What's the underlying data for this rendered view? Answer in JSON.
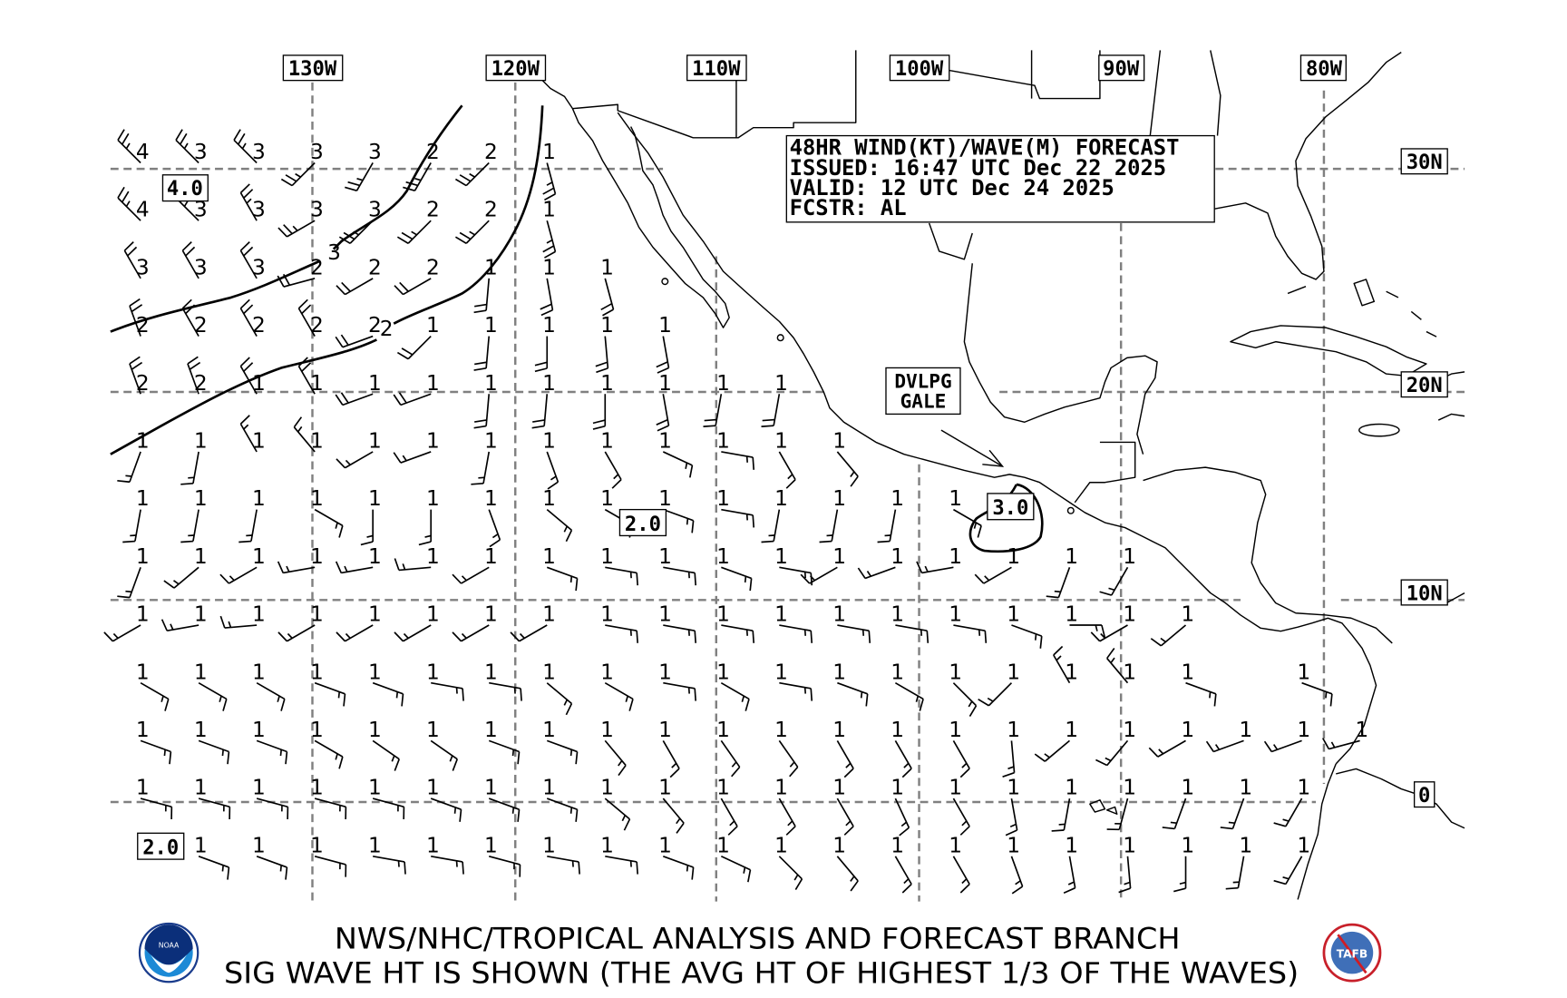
{
  "header": {
    "line1": "48HR WIND(KT)/WAVE(M) FORECAST",
    "line2": "ISSUED: 16:47 UTC Dec 22 2025",
    "line3": "VALID: 12 UTC Dec 24 2025",
    "line4": "FCSTR: AL"
  },
  "longitudes": [
    "130W",
    "120W",
    "110W",
    "100W",
    "90W",
    "80W"
  ],
  "latitudes": [
    "30N",
    "20N",
    "10N",
    "0"
  ],
  "contour_labels": {
    "box_4": "4.0",
    "box_2a": "2.0",
    "box_2b": "2.0",
    "box_3": "3.0",
    "line_3": "3",
    "line_2": "2"
  },
  "warning": {
    "line1": "DVLPG",
    "line2": "GALE"
  },
  "footer": {
    "line1": "NWS/NHC/TROPICAL ANALYSIS AND FORECAST BRANCH",
    "line2": "SIG WAVE HT IS SHOWN (THE AVG HT OF HIGHEST 1/3 OF THE WAVES)",
    "logo_left": "NOAA",
    "logo_right": "TAFB"
  },
  "wave_heights_m": [
    [
      4,
      3,
      3,
      3,
      3,
      2,
      2,
      1
    ],
    [
      4,
      3,
      3,
      3,
      3,
      2,
      2,
      1
    ],
    [
      3,
      3,
      3,
      2,
      2,
      2,
      1,
      1,
      1
    ],
    [
      2,
      2,
      2,
      2,
      2,
      1,
      1,
      1,
      1,
      1
    ],
    [
      2,
      2,
      1,
      1,
      1,
      1,
      1,
      1,
      1,
      1,
      1,
      1
    ],
    [
      1,
      1,
      1,
      1,
      1,
      1,
      1,
      1,
      1,
      1,
      1,
      1,
      1
    ],
    [
      1,
      1,
      1,
      1,
      1,
      1,
      1,
      1,
      1,
      1,
      1,
      1,
      1,
      1,
      1
    ],
    [
      1,
      1,
      1,
      1,
      1,
      1,
      1,
      1,
      1,
      1,
      1,
      1,
      1,
      1,
      1,
      1,
      1,
      1
    ],
    [
      1,
      1,
      1,
      1,
      1,
      1,
      1,
      1,
      1,
      1,
      1,
      1,
      1,
      1,
      1,
      1,
      1,
      1,
      1
    ],
    [
      1,
      1,
      1,
      1,
      1,
      1,
      1,
      1,
      1,
      1,
      1,
      1,
      1,
      1,
      1,
      1,
      1,
      1,
      1,
      null,
      1
    ],
    [
      1,
      1,
      1,
      1,
      1,
      1,
      1,
      1,
      1,
      1,
      1,
      1,
      1,
      1,
      1,
      1,
      1,
      1,
      1,
      1,
      1,
      1
    ],
    [
      1,
      1,
      1,
      1,
      1,
      1,
      1,
      1,
      1,
      1,
      1,
      1,
      1,
      1,
      1,
      1,
      1,
      1,
      1,
      1,
      1
    ],
    [
      null,
      1,
      1,
      1,
      1,
      1,
      1,
      1,
      1,
      1,
      1,
      1,
      1,
      1,
      1,
      1,
      1,
      1,
      1,
      1,
      1
    ]
  ],
  "wind_dir_deg": [
    [
      315,
      315,
      315,
      225,
      210,
      210,
      225,
      165
    ],
    [
      315,
      315,
      330,
      240,
      225,
      225,
      225,
      165
    ],
    [
      330,
      330,
      330,
      255,
      240,
      240,
      185,
      170,
      165
    ],
    [
      340,
      330,
      330,
      330,
      250,
      225,
      185,
      180,
      175,
      170
    ],
    [
      340,
      340,
      330,
      330,
      250,
      250,
      185,
      185,
      180,
      170,
      190,
      190
    ],
    [
      200,
      190,
      330,
      320,
      240,
      250,
      190,
      160,
      150,
      115,
      100,
      150,
      140
    ],
    [
      190,
      190,
      190,
      120,
      180,
      180,
      160,
      130,
      120,
      110,
      100,
      190,
      190,
      190,
      120
    ],
    [
      200,
      230,
      240,
      260,
      260,
      265,
      240,
      110,
      100,
      100,
      110,
      100,
      240,
      250,
      260,
      240,
      200,
      210
    ],
    [
      240,
      260,
      265,
      240,
      240,
      240,
      240,
      240,
      100,
      100,
      100,
      100,
      100,
      100,
      100,
      110,
      90,
      240,
      230
    ],
    [
      120,
      120,
      120,
      110,
      110,
      100,
      100,
      130,
      120,
      100,
      120,
      100,
      110,
      120,
      135,
      225,
      330,
      320,
      110,
      null,
      110
    ],
    [
      110,
      110,
      110,
      120,
      125,
      125,
      110,
      110,
      140,
      150,
      145,
      145,
      150,
      150,
      150,
      175,
      230,
      220,
      240,
      250,
      250,
      255
    ],
    [
      105,
      105,
      105,
      105,
      105,
      110,
      110,
      110,
      130,
      140,
      150,
      150,
      150,
      155,
      150,
      170,
      190,
      195,
      200,
      200,
      210
    ],
    [
      null,
      110,
      110,
      105,
      100,
      100,
      105,
      100,
      100,
      110,
      115,
      135,
      140,
      150,
      150,
      160,
      170,
      175,
      180,
      190,
      210
    ]
  ],
  "wind_speed_kt_by_row": [
    25,
    25,
    20,
    20,
    20,
    15,
    15,
    15,
    15,
    15,
    15,
    15,
    15
  ]
}
